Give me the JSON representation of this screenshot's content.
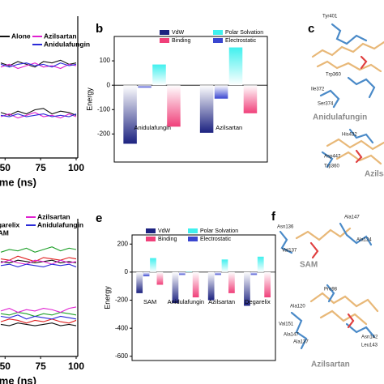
{
  "panel_labels": [
    "b",
    "c",
    "e",
    "f"
  ],
  "chart_data": [
    {
      "type": "line",
      "xlabel": "Time (ns)",
      "x": [
        47,
        53,
        59,
        65,
        71,
        77,
        83,
        89,
        95,
        100
      ],
      "xlim": [
        47,
        100
      ],
      "xticks": [
        50,
        75,
        100
      ],
      "ylim": [
        0,
        10
      ],
      "series": [
        {
          "name": "Alone",
          "color": "#111111",
          "upper": [
            6.9,
            6.7,
            7.0,
            6.8,
            6.6,
            7.0,
            6.9,
            7.1,
            6.8,
            6.9
          ],
          "lower": [
            3.3,
            3.1,
            3.4,
            3.2,
            3.5,
            3.6,
            3.2,
            3.4,
            3.3,
            3.1
          ]
        },
        {
          "name": "Azilsartan",
          "color": "#e020d0",
          "upper": [
            6.6,
            6.8,
            6.5,
            6.7,
            6.9,
            6.6,
            6.7,
            6.5,
            6.8,
            6.7
          ],
          "lower": [
            3.0,
            3.2,
            2.9,
            3.1,
            3.3,
            3.0,
            3.1,
            2.9,
            3.2,
            3.0
          ]
        },
        {
          "name": "Anidulafungin",
          "color": "#2a2ad8",
          "upper": [
            6.8,
            6.6,
            6.8,
            6.9,
            6.7,
            6.8,
            6.6,
            6.9,
            6.7,
            6.8
          ],
          "lower": [
            3.1,
            3.0,
            3.2,
            3.0,
            3.1,
            3.2,
            3.0,
            3.1,
            3.0,
            3.2
          ]
        }
      ]
    },
    {
      "type": "bar",
      "ylabel": "Energy",
      "categories": [
        "Anidulafungin",
        "Azilsartan"
      ],
      "ylim": [
        -315,
        200
      ],
      "yticks": [
        100,
        0,
        -100,
        -200
      ],
      "series": [
        {
          "name": "VdW",
          "color": "#1c2280",
          "values": [
            -240,
            -195
          ]
        },
        {
          "name": "Binding",
          "color": "#f0407a",
          "values": [
            -170,
            -115
          ]
        },
        {
          "name": "Polar Solvation",
          "color": "#40f0ee",
          "values": [
            85,
            155
          ]
        },
        {
          "name": "Electrostatic",
          "color": "#3a46d0",
          "values": [
            -10,
            -55
          ]
        }
      ]
    },
    {
      "type": "line",
      "xlabel": "Time (ns)",
      "x": [
        47,
        53,
        59,
        65,
        71,
        77,
        83,
        89,
        95,
        100
      ],
      "xlim": [
        47,
        100
      ],
      "xticks": [
        50,
        75,
        100
      ],
      "ylim": [
        0,
        10
      ],
      "series": [
        {
          "color": "#111111",
          "upper": [
            7.1,
            7.0,
            7.2,
            7.1,
            7.0,
            7.1,
            7.2,
            7.0,
            7.1,
            7.0
          ],
          "lower": [
            2.4,
            2.3,
            2.5,
            2.4,
            2.3,
            2.4,
            2.5,
            2.3,
            2.4,
            2.3
          ]
        },
        {
          "name": "Degarelix",
          "color": "#1fa02a",
          "upper": [
            7.8,
            8.0,
            7.9,
            8.1,
            7.8,
            8.0,
            8.2,
            7.9,
            8.1,
            8.0
          ],
          "lower": [
            3.2,
            3.1,
            3.3,
            3.2,
            3.0,
            3.2,
            3.1,
            3.3,
            3.2,
            3.1
          ]
        },
        {
          "name": "SAM",
          "color": "#e02020",
          "upper": [
            7.3,
            7.2,
            7.5,
            7.3,
            7.1,
            7.4,
            7.3,
            7.2,
            7.4,
            7.3
          ],
          "lower": [
            2.6,
            2.8,
            2.7,
            2.5,
            2.7,
            2.6,
            2.8,
            2.6,
            2.5,
            2.7
          ]
        },
        {
          "name": "Azilsartan",
          "color": "#e020d0",
          "upper": [
            7.0,
            7.2,
            7.0,
            6.9,
            7.2,
            7.1,
            6.9,
            7.2,
            7.0,
            7.1
          ],
          "lower": [
            3.4,
            3.6,
            3.3,
            3.5,
            3.4,
            3.6,
            3.5,
            3.3,
            3.6,
            3.7
          ]
        },
        {
          "name": "Anidulafungin",
          "color": "#2a2ad8",
          "upper": [
            6.8,
            6.9,
            6.7,
            6.9,
            6.8,
            6.7,
            6.9,
            6.8,
            6.9,
            6.7
          ],
          "lower": [
            3.0,
            2.9,
            3.1,
            2.8,
            3.0,
            2.9,
            2.8,
            3.0,
            2.9,
            2.8
          ]
        }
      ]
    },
    {
      "type": "bar",
      "ylabel": "Energy",
      "categories": [
        "SAM",
        "Anidulafungin",
        "Azilsartan",
        "Degarelix"
      ],
      "ylim": [
        -630,
        265
      ],
      "yticks": [
        200,
        0,
        -200,
        -400,
        -600
      ],
      "series": [
        {
          "name": "VdW",
          "color": "#1c2280",
          "values": [
            -150,
            -220,
            -200,
            -240
          ]
        },
        {
          "name": "Binding",
          "color": "#f0407a",
          "values": [
            -90,
            -180,
            -150,
            -180
          ]
        },
        {
          "name": "Polar Solvation",
          "color": "#40f0ee",
          "values": [
            100,
            5,
            90,
            110
          ]
        },
        {
          "name": "Electrostatic",
          "color": "#3a46d0",
          "values": [
            -30,
            -20,
            -20,
            -20
          ]
        }
      ]
    }
  ],
  "structures": {
    "c": {
      "residues": [
        "Tyr401",
        "Trp360",
        "Ile372",
        "Ser374",
        "His432",
        "Asp447",
        "Trp360"
      ],
      "ligands": [
        "Anidulafungin",
        "Azilsartan"
      ]
    },
    "f": {
      "residues": [
        "Asn136",
        "Ala147",
        "Val137",
        "Ala124",
        "Pro98",
        "Ala120",
        "Val151",
        "Ala147",
        "Ala137",
        "Asn142",
        "Leu143"
      ],
      "ligands": [
        "SAM",
        "Azilsartan"
      ]
    }
  }
}
